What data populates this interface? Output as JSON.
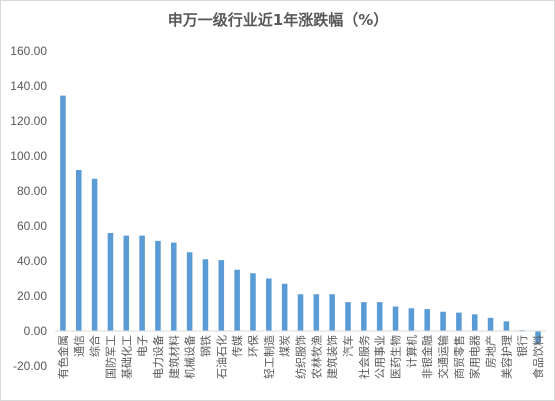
{
  "chart_data": {
    "type": "bar",
    "title": "申万一级行业近1年涨跌幅（%）",
    "xlabel": "",
    "ylabel": "",
    "ylim": [
      -20,
      160
    ],
    "yticks": [
      "-20.00",
      "0.00",
      "20.00",
      "40.00",
      "60.00",
      "80.00",
      "100.00",
      "120.00",
      "140.00",
      "160.00"
    ],
    "grid": false,
    "legend": "none",
    "bar_color": "#5b9bd5",
    "categories": [
      "有色金属",
      "通信",
      "综合",
      "国防军工",
      "基础化工",
      "电子",
      "电力设备",
      "建筑材料",
      "机械设备",
      "钢铁",
      "石油石化",
      "传媒",
      "环保",
      "轻工制造",
      "煤炭",
      "纺织服饰",
      "农林牧渔",
      "建筑装饰",
      "汽车",
      "社会服务",
      "公用事业",
      "医药生物",
      "计算机",
      "非银金融",
      "交通运输",
      "商贸零售",
      "家用电器",
      "房地产",
      "美容护理",
      "银行",
      "食品饮料"
    ],
    "values": [
      134.5,
      92,
      87,
      56,
      54.5,
      54.5,
      51.5,
      50.5,
      45,
      41,
      40.5,
      35,
      33,
      30,
      27,
      21,
      21,
      21,
      16.5,
      16.5,
      16.5,
      14,
      13,
      12.5,
      11,
      10.5,
      9.5,
      7.5,
      5.5,
      0.5,
      -7
    ]
  }
}
